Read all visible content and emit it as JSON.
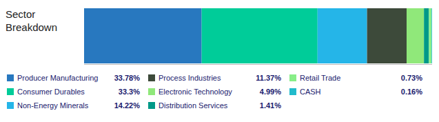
{
  "chart_data": {
    "type": "bar",
    "title": "Sector\nBreakdown",
    "orientation": "horizontal",
    "stacked": true,
    "categories": [
      null
    ],
    "series": [
      {
        "name": "Producer Manufacturing",
        "color": "#2878bf",
        "values": [
          33.78
        ],
        "value_labels": [
          "33.78%"
        ]
      },
      {
        "name": "Consumer Durables",
        "color": "#00cc99",
        "values": [
          33.3
        ],
        "value_labels": [
          "33.3%"
        ]
      },
      {
        "name": "Non-Energy Minerals",
        "color": "#25b5e8",
        "values": [
          14.22
        ],
        "value_labels": [
          "14.22%"
        ]
      },
      {
        "name": "Process Industries",
        "color": "#3d4a3a",
        "values": [
          11.37
        ],
        "value_labels": [
          "11.37%"
        ]
      },
      {
        "name": "Electronic Technology",
        "color": "#90e87a",
        "values": [
          4.99
        ],
        "value_labels": [
          "4.99%"
        ]
      },
      {
        "name": "Distribution Services",
        "color": "#009988",
        "values": [
          1.41
        ],
        "value_labels": [
          "1.41%"
        ]
      },
      {
        "name": "Retail Trade",
        "color": "#88ee88",
        "values": [
          0.73
        ],
        "value_labels": [
          "0.73%"
        ]
      },
      {
        "name": "CASH",
        "color": "#22bbcc",
        "values": [
          0.16
        ],
        "value_labels": [
          "0.16%"
        ]
      }
    ],
    "xlim": [
      0,
      100
    ],
    "tick_labels": false,
    "grid": false,
    "legend": "bottom"
  }
}
